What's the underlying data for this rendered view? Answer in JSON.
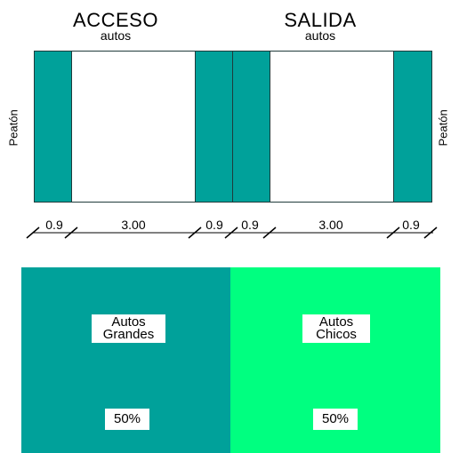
{
  "entries": {
    "acceso": {
      "title": "ACCESO",
      "subtitle": "autos"
    },
    "salida": {
      "title": "SALIDA",
      "subtitle": "autos"
    }
  },
  "side_labels": {
    "left": "Peatón",
    "right": "Peatón"
  },
  "dimensions": {
    "acceso": [
      "0.9",
      "3.00",
      "0.9"
    ],
    "salida": [
      "0.9",
      "3.00",
      "0.9"
    ]
  },
  "blocks": {
    "grandes": {
      "label_line1": "Autos",
      "label_line2": "Grandes",
      "percent": "50%"
    },
    "chicos": {
      "label_line1": "Autos",
      "label_line2": "Chicos",
      "percent": "50%"
    }
  },
  "colors": {
    "teal": "#00a19a",
    "green": "#00ff80"
  }
}
